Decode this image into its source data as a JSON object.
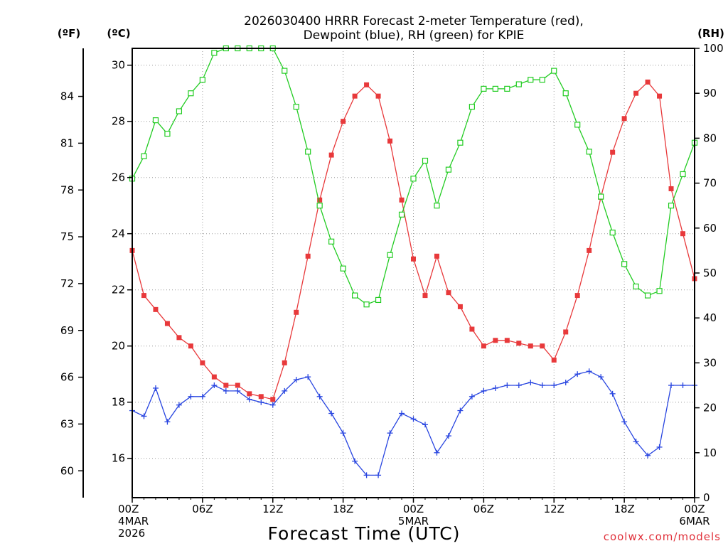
{
  "chart_data": {
    "type": "line",
    "title_lines": [
      "2026030400 HRRR Forecast 2-meter Temperature (red),",
      "Dewpoint (blue), RH (green) for KPIE"
    ],
    "xlabel": "Forecast Time (UTC)",
    "credit": "coolwx.com/models",
    "x_hours": [
      0,
      1,
      2,
      3,
      4,
      5,
      6,
      7,
      8,
      9,
      10,
      11,
      12,
      13,
      14,
      15,
      16,
      17,
      18,
      19,
      20,
      21,
      22,
      23,
      24,
      25,
      26,
      27,
      28,
      29,
      30,
      31,
      32,
      33,
      34,
      35,
      36,
      37,
      38,
      39,
      40,
      41,
      42,
      43,
      44,
      45,
      46,
      47,
      48
    ],
    "x_ticks": [
      {
        "hour": 0,
        "lines": [
          "00Z",
          "4MAR",
          "2026"
        ]
      },
      {
        "hour": 6,
        "lines": [
          "06Z"
        ]
      },
      {
        "hour": 12,
        "lines": [
          "12Z"
        ]
      },
      {
        "hour": 18,
        "lines": [
          "18Z"
        ]
      },
      {
        "hour": 24,
        "lines": [
          "00Z",
          "5MAR"
        ]
      },
      {
        "hour": 30,
        "lines": [
          "06Z"
        ]
      },
      {
        "hour": 36,
        "lines": [
          "12Z"
        ]
      },
      {
        "hour": 42,
        "lines": [
          "18Z"
        ]
      },
      {
        "hour": 48,
        "lines": [
          "00Z",
          "6MAR"
        ]
      }
    ],
    "xlim": [
      0,
      48
    ],
    "y_left_celsius": {
      "unit_label": "(ºC)",
      "range": [
        14.6,
        30.6
      ],
      "ticks": [
        16,
        18,
        20,
        22,
        24,
        26,
        28,
        30
      ]
    },
    "y_left_fahrenheit": {
      "unit_label": "(ºF)",
      "ticks": [
        60,
        63,
        66,
        69,
        72,
        75,
        78,
        81,
        84
      ]
    },
    "y_right_rh": {
      "unit_label": "(RH)",
      "range": [
        0,
        100
      ],
      "ticks": [
        0,
        10,
        20,
        30,
        40,
        50,
        60,
        70,
        80,
        90,
        100
      ]
    },
    "grid": true,
    "series": [
      {
        "name": "Temperature",
        "axis": "celsius",
        "color": "#e8393b",
        "marker": "filled-square",
        "values": [
          23.4,
          21.8,
          21.3,
          20.8,
          20.3,
          20.0,
          19.4,
          18.9,
          18.6,
          18.6,
          18.3,
          18.2,
          18.1,
          19.4,
          21.2,
          23.2,
          25.2,
          26.8,
          28.0,
          28.9,
          29.3,
          28.9,
          27.3,
          25.2,
          23.1,
          21.8,
          23.2,
          21.9,
          21.4,
          20.6,
          20.0,
          20.2,
          20.2,
          20.1,
          20.0,
          20.0,
          19.5,
          20.5,
          21.8,
          23.4,
          25.3,
          26.9,
          28.1,
          29.0,
          29.4,
          28.9,
          25.6,
          24.0,
          22.4
        ]
      },
      {
        "name": "Dewpoint",
        "axis": "celsius",
        "color": "#2845e0",
        "marker": "plus",
        "values": [
          17.7,
          17.5,
          18.5,
          17.3,
          17.9,
          18.2,
          18.2,
          18.6,
          18.4,
          18.4,
          18.1,
          18.0,
          17.9,
          18.4,
          18.8,
          18.9,
          18.2,
          17.6,
          16.9,
          15.9,
          15.4,
          15.4,
          16.9,
          17.6,
          17.4,
          17.2,
          16.2,
          16.8,
          17.7,
          18.2,
          18.4,
          18.5,
          18.6,
          18.6,
          18.7,
          18.6,
          18.6,
          18.7,
          19.0,
          19.1,
          18.9,
          18.3,
          17.3,
          16.6,
          16.1,
          16.4,
          18.6,
          18.6,
          18.6
        ]
      },
      {
        "name": "RH",
        "axis": "rh",
        "color": "#22cc22",
        "marker": "open-square",
        "values": [
          71,
          76,
          84,
          81,
          86,
          90,
          93,
          99,
          100,
          100,
          100,
          100,
          100,
          95,
          87,
          77,
          65,
          57,
          51,
          45,
          43,
          44,
          54,
          63,
          71,
          75,
          65,
          73,
          79,
          87,
          91,
          91,
          91,
          92,
          93,
          93,
          95,
          90,
          83,
          77,
          67,
          59,
          52,
          47,
          45,
          46,
          65,
          72,
          79
        ]
      }
    ]
  }
}
